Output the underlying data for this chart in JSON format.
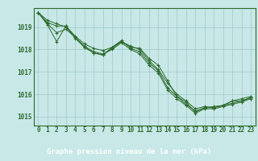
{
  "title": "Graphe pression niveau de la mer (hPa)",
  "x_hours": [
    0,
    1,
    2,
    3,
    4,
    5,
    6,
    7,
    8,
    9,
    10,
    11,
    12,
    13,
    14,
    15,
    16,
    17,
    18,
    19,
    20,
    21,
    22,
    23
  ],
  "series": [
    [
      1019.65,
      1019.3,
      1019.15,
      1019.0,
      1018.55,
      1018.1,
      1017.85,
      1017.75,
      1018.05,
      1018.35,
      1018.1,
      1018.05,
      1017.6,
      1017.3,
      1016.6,
      1015.9,
      1015.65,
      1015.2,
      1015.4,
      1015.4,
      1015.5,
      1015.7,
      1015.8,
      1015.9
    ],
    [
      1019.65,
      1019.2,
      1019.05,
      1019.05,
      1018.6,
      1018.25,
      1018.05,
      1017.95,
      1018.1,
      1018.35,
      1018.15,
      1018.0,
      1017.5,
      1017.1,
      1016.5,
      1016.0,
      1015.7,
      1015.35,
      1015.45,
      1015.4,
      1015.5,
      1015.7,
      1015.7,
      1015.85
    ],
    [
      1019.65,
      1019.15,
      1018.75,
      1018.9,
      1018.55,
      1018.15,
      1017.9,
      1017.8,
      1018.0,
      1018.3,
      1018.0,
      1017.8,
      1017.3,
      1016.95,
      1016.2,
      1015.8,
      1015.5,
      1015.15,
      1015.35,
      1015.35,
      1015.45,
      1015.55,
      1015.65,
      1015.8
    ],
    [
      1019.65,
      1019.1,
      1018.35,
      1019.05,
      1018.5,
      1018.1,
      1017.85,
      1017.75,
      1018.1,
      1018.4,
      1018.05,
      1017.9,
      1017.4,
      1017.05,
      1016.3,
      1015.9,
      1015.55,
      1015.25,
      1015.4,
      1015.45,
      1015.5,
      1015.6,
      1015.7,
      1015.85
    ]
  ],
  "ylim": [
    1014.6,
    1019.85
  ],
  "yticks": [
    1015,
    1016,
    1017,
    1018,
    1019
  ],
  "line_color": "#2d6a2d",
  "bg_color": "#c8e8e8",
  "grid_color": "#a0c8c8",
  "title_bg": "#2d6a2d",
  "title_text_color": "#ffffff",
  "label_fontsize": 5.5,
  "title_fontsize": 6.5
}
